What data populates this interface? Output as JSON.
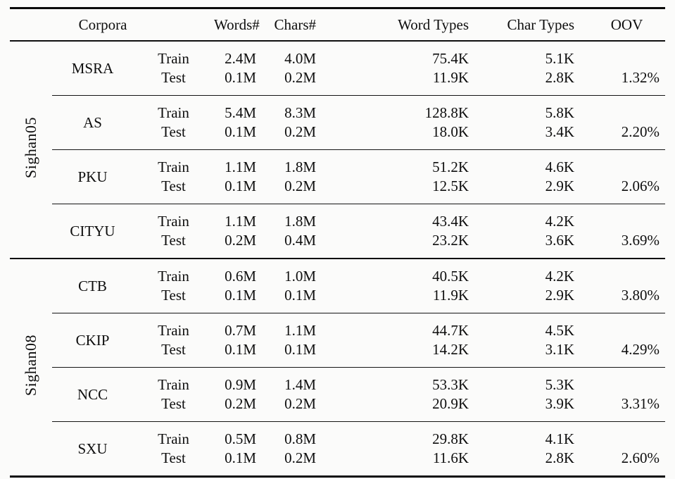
{
  "table": {
    "headers": {
      "corpora": "Corpora",
      "words": "Words#",
      "chars": "Chars#",
      "word_types": "Word Types",
      "char_types": "Char Types",
      "oov": "OOV"
    },
    "sections": [
      {
        "name": "Sighan05",
        "corpora": [
          {
            "name": "MSRA",
            "rows": [
              {
                "split": "Train",
                "words": "2.4M",
                "chars": "4.0M",
                "word_types": "75.4K",
                "char_types": "5.1K",
                "oov": ""
              },
              {
                "split": "Test",
                "words": "0.1M",
                "chars": "0.2M",
                "word_types": "11.9K",
                "char_types": "2.8K",
                "oov": "1.32%"
              }
            ]
          },
          {
            "name": "AS",
            "rows": [
              {
                "split": "Train",
                "words": "5.4M",
                "chars": "8.3M",
                "word_types": "128.8K",
                "char_types": "5.8K",
                "oov": ""
              },
              {
                "split": "Test",
                "words": "0.1M",
                "chars": "0.2M",
                "word_types": "18.0K",
                "char_types": "3.4K",
                "oov": "2.20%"
              }
            ]
          },
          {
            "name": "PKU",
            "rows": [
              {
                "split": "Train",
                "words": "1.1M",
                "chars": "1.8M",
                "word_types": "51.2K",
                "char_types": "4.6K",
                "oov": ""
              },
              {
                "split": "Test",
                "words": "0.1M",
                "chars": "0.2M",
                "word_types": "12.5K",
                "char_types": "2.9K",
                "oov": "2.06%"
              }
            ]
          },
          {
            "name": "CITYU",
            "rows": [
              {
                "split": "Train",
                "words": "1.1M",
                "chars": "1.8M",
                "word_types": "43.4K",
                "char_types": "4.2K",
                "oov": ""
              },
              {
                "split": "Test",
                "words": "0.2M",
                "chars": "0.4M",
                "word_types": "23.2K",
                "char_types": "3.6K",
                "oov": "3.69%"
              }
            ]
          }
        ]
      },
      {
        "name": "Sighan08",
        "corpora": [
          {
            "name": "CTB",
            "rows": [
              {
                "split": "Train",
                "words": "0.6M",
                "chars": "1.0M",
                "word_types": "40.5K",
                "char_types": "4.2K",
                "oov": ""
              },
              {
                "split": "Test",
                "words": "0.1M",
                "chars": "0.1M",
                "word_types": "11.9K",
                "char_types": "2.9K",
                "oov": "3.80%"
              }
            ]
          },
          {
            "name": "CKIP",
            "rows": [
              {
                "split": "Train",
                "words": "0.7M",
                "chars": "1.1M",
                "word_types": "44.7K",
                "char_types": "4.5K",
                "oov": ""
              },
              {
                "split": "Test",
                "words": "0.1M",
                "chars": "0.1M",
                "word_types": "14.2K",
                "char_types": "3.1K",
                "oov": "4.29%"
              }
            ]
          },
          {
            "name": "NCC",
            "rows": [
              {
                "split": "Train",
                "words": "0.9M",
                "chars": "1.4M",
                "word_types": "53.3K",
                "char_types": "5.3K",
                "oov": ""
              },
              {
                "split": "Test",
                "words": "0.2M",
                "chars": "0.2M",
                "word_types": "20.9K",
                "char_types": "3.9K",
                "oov": "3.31%"
              }
            ]
          },
          {
            "name": "SXU",
            "rows": [
              {
                "split": "Train",
                "words": "0.5M",
                "chars": "0.8M",
                "word_types": "29.8K",
                "char_types": "4.1K",
                "oov": ""
              },
              {
                "split": "Test",
                "words": "0.1M",
                "chars": "0.2M",
                "word_types": "11.6K",
                "char_types": "2.8K",
                "oov": "2.60%"
              }
            ]
          }
        ]
      }
    ]
  },
  "colors": {
    "background": "#fbfbfa",
    "text": "#0e0e0e",
    "rule": "#0a0a0a"
  }
}
